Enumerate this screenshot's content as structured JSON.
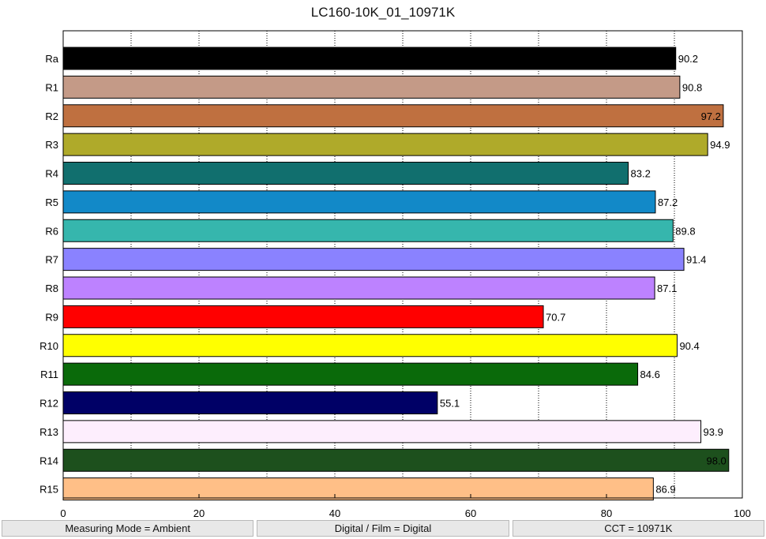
{
  "chart_data": {
    "type": "bar",
    "orientation": "horizontal",
    "title": "LC160-10K_01_10971K",
    "categories": [
      "Ra",
      "R1",
      "R2",
      "R3",
      "R4",
      "R5",
      "R6",
      "R7",
      "R8",
      "R9",
      "R10",
      "R11",
      "R12",
      "R13",
      "R14",
      "R15"
    ],
    "values": [
      90.2,
      90.8,
      97.2,
      94.9,
      83.2,
      87.2,
      89.8,
      91.4,
      87.1,
      70.7,
      90.4,
      84.6,
      55.1,
      93.9,
      98.0,
      86.9
    ],
    "value_labels": [
      "90.2",
      "90.8",
      "97.2",
      "94.9",
      "83.2",
      "87.2",
      "89.8",
      "91.4",
      "87.1",
      "70.7",
      "90.4",
      "84.6",
      "55.1",
      "93.9",
      "98.0",
      "86.9"
    ],
    "colors": [
      "#000000",
      "#c49a87",
      "#bf7040",
      "#afaa2a",
      "#116f6e",
      "#1289c8",
      "#36b6ad",
      "#8a82ff",
      "#bd82ff",
      "#ff0000",
      "#ffff00",
      "#0a6a0a",
      "#000066",
      "#fdeefd",
      "#1d501d",
      "#ffbf87"
    ],
    "xlim": [
      0,
      100
    ],
    "x_ticks": [
      0,
      20,
      40,
      60,
      80,
      100
    ],
    "x_tick_labels": [
      "0",
      "20",
      "40",
      "60",
      "80",
      "100"
    ],
    "grid": "vertical dotted, every 10",
    "legend": "none"
  },
  "status": {
    "measuring_mode": "Measuring Mode = Ambient",
    "digital_film": "Digital / Film = Digital",
    "cct": "CCT = 10971K"
  }
}
